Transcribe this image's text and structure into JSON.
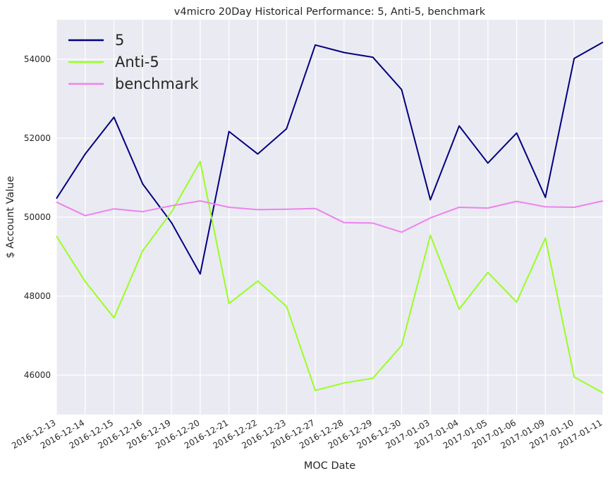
{
  "chart_data": {
    "type": "line",
    "title": "v4micro 20Day Historical Performance: 5, Anti-5, benchmark",
    "xlabel": "MOC Date",
    "ylabel": "$ Account Value",
    "categories": [
      "2016-12-13",
      "2016-12-14",
      "2016-12-15",
      "2016-12-16",
      "2016-12-19",
      "2016-12-20",
      "2016-12-21",
      "2016-12-22",
      "2016-12-23",
      "2016-12-27",
      "2016-12-28",
      "2016-12-29",
      "2016-12-30",
      "2017-01-03",
      "2017-01-04",
      "2017-01-05",
      "2017-01-06",
      "2017-01-09",
      "2017-01-10",
      "2017-01-11"
    ],
    "ylim": [
      45000,
      55000
    ],
    "yticks": [
      46000,
      48000,
      50000,
      52000,
      54000
    ],
    "grid": true,
    "legend_position": "top-left",
    "series": [
      {
        "name": "5",
        "color": "#000080",
        "values": [
          50470,
          51600,
          52530,
          50840,
          49860,
          48560,
          52170,
          51600,
          52240,
          54360,
          54170,
          54050,
          53230,
          50440,
          52310,
          51370,
          52130,
          50500,
          54020,
          54430
        ]
      },
      {
        "name": "Anti-5",
        "color": "#99ff22",
        "values": [
          49520,
          48370,
          47450,
          49150,
          50130,
          51410,
          47810,
          48380,
          47740,
          45610,
          45800,
          45920,
          46750,
          49540,
          47670,
          48600,
          47850,
          49470,
          45950,
          45550
        ]
      },
      {
        "name": "benchmark",
        "color": "#ee82ee",
        "values": [
          50380,
          50040,
          50210,
          50140,
          50290,
          50410,
          50250,
          50190,
          50200,
          50220,
          49860,
          49850,
          49620,
          49980,
          50250,
          50230,
          50400,
          50260,
          50250,
          50410
        ]
      }
    ]
  },
  "colors": {
    "plot_background": "#eaeaf2",
    "grid": "#ffffff",
    "text": "#262626"
  }
}
